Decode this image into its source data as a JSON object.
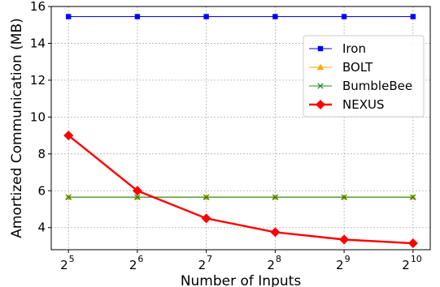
{
  "chart_data": {
    "type": "line",
    "xlabel": "Number of Inputs",
    "ylabel": "Amortized Communication (MB)",
    "x_base": "2",
    "x": [
      5,
      6,
      7,
      8,
      9,
      10
    ],
    "x_ticks": [
      "5",
      "6",
      "7",
      "8",
      "9",
      "10"
    ],
    "ylim": [
      2.8,
      16
    ],
    "y_ticks": [
      "4",
      "6",
      "8",
      "10",
      "12",
      "14",
      "16"
    ],
    "grid": true,
    "legend_position": "upper-right",
    "series": [
      {
        "name": "Iron",
        "color": "#0000ff",
        "marker": "square",
        "values": [
          15.45,
          15.45,
          15.45,
          15.45,
          15.45,
          15.45
        ]
      },
      {
        "name": "BOLT",
        "color": "#ffa500",
        "marker": "triangle",
        "values": [
          5.65,
          5.65,
          5.65,
          5.65,
          5.65,
          5.65
        ]
      },
      {
        "name": "BumbleBee",
        "color": "#228b22",
        "marker": "x",
        "values": [
          5.65,
          5.65,
          5.65,
          5.65,
          5.65,
          5.65
        ]
      },
      {
        "name": "NEXUS",
        "color": "#ff0000",
        "marker": "diamond",
        "values": [
          9.0,
          6.0,
          4.5,
          3.75,
          3.35,
          3.15
        ]
      }
    ]
  }
}
